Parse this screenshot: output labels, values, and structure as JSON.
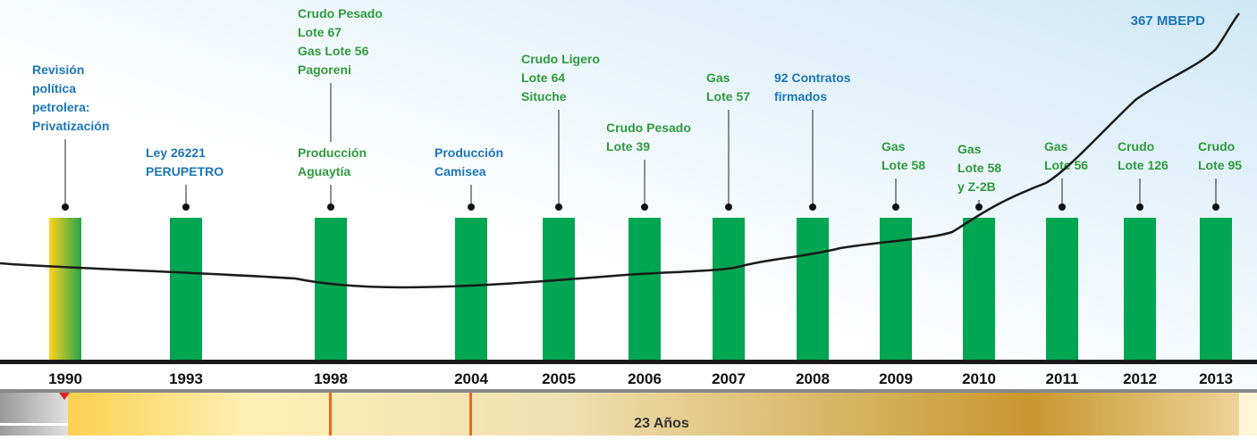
{
  "headline": "367 MBEPD",
  "events": [
    {
      "year": "1990",
      "blocks": [
        {
          "lines": [
            "Revisión",
            "política",
            "petrolera:",
            "Privatización"
          ],
          "color": "#1b75bb"
        }
      ]
    },
    {
      "year": "1993",
      "blocks": [
        {
          "lines": [
            "Ley 26221",
            "PERUPETRO"
          ],
          "color": "#1b75bb"
        }
      ]
    },
    {
      "year": "1998",
      "blocks": [
        {
          "lines": [
            "Crudo Pesado",
            "Lote 67",
            "Gas Lote 56",
            "Pagoreni"
          ],
          "color": "#2f9a3c"
        },
        {
          "lines": [
            "Producción",
            "Aguaytía"
          ],
          "color": "#2f9a3c"
        }
      ]
    },
    {
      "year": "2004",
      "blocks": [
        {
          "lines": [
            "Producción",
            "Camisea"
          ],
          "color": "#1b75bb"
        }
      ]
    },
    {
      "year": "2005",
      "blocks": [
        {
          "lines": [
            "Crudo Ligero",
            "Lote 64",
            "Situche"
          ],
          "color": "#2f9a3c"
        }
      ]
    },
    {
      "year": "2006",
      "blocks": [
        {
          "lines": [
            "Crudo Pesado",
            "Lote 39"
          ],
          "color": "#2f9a3c"
        }
      ]
    },
    {
      "year": "2007",
      "blocks": [
        {
          "lines": [
            "Gas",
            "Lote 57"
          ],
          "color": "#2f9a3c"
        }
      ]
    },
    {
      "year": "2008",
      "blocks": [
        {
          "lines": [
            "92 Contratos",
            "firmados"
          ],
          "color": "#1b75bb"
        }
      ]
    },
    {
      "year": "2009",
      "blocks": [
        {
          "lines": [
            "Gas",
            "Lote 58"
          ],
          "color": "#2f9a3c"
        }
      ]
    },
    {
      "year": "2010",
      "blocks": [
        {
          "lines": [
            "Gas",
            "Lote 58",
            "y Z-2B"
          ],
          "color": "#2f9a3c"
        }
      ]
    },
    {
      "year": "2011",
      "blocks": [
        {
          "lines": [
            "Gas",
            "Lote 56"
          ],
          "color": "#2f9a3c"
        }
      ]
    },
    {
      "year": "2012",
      "blocks": [
        {
          "lines": [
            "Crudo",
            "Lote 126"
          ],
          "color": "#2f9a3c"
        }
      ]
    },
    {
      "year": "2013",
      "blocks": [
        {
          "lines": [
            "Crudo",
            "Lote 95"
          ],
          "color": "#2f9a3c"
        }
      ]
    }
  ],
  "span_label": "23 Años"
}
